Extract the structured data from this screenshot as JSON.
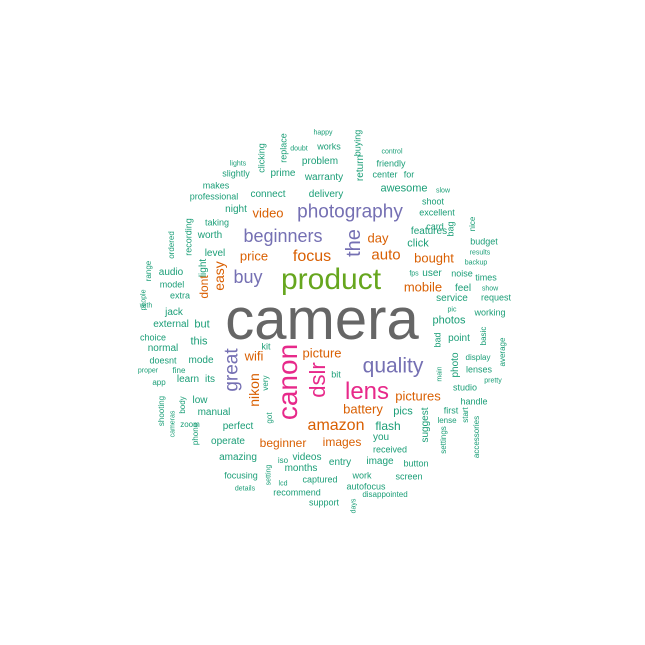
{
  "colors": {
    "tier1": "#666666",
    "tier2": "#66a61e",
    "tier3": "#e7298a",
    "tier4": "#7570b3",
    "tier5": "#d95f02",
    "tier6": "#1b9e77"
  },
  "words": [
    {
      "text": "camera",
      "tier": 1
    },
    {
      "text": "product",
      "tier": 2
    },
    {
      "text": "canon",
      "tier": 3
    },
    {
      "text": "dslr",
      "tier": 3
    },
    {
      "text": "lens",
      "tier": 3
    },
    {
      "text": "quality",
      "tier": 4
    },
    {
      "text": "photography",
      "tier": 4
    },
    {
      "text": "the",
      "tier": 4
    },
    {
      "text": "beginners",
      "tier": 4
    },
    {
      "text": "great",
      "tier": 4
    },
    {
      "text": "buy",
      "tier": 4
    },
    {
      "text": "amazon",
      "tier": 5
    },
    {
      "text": "focus",
      "tier": 5
    },
    {
      "text": "auto",
      "tier": 5
    },
    {
      "text": "easy",
      "tier": 5
    },
    {
      "text": "nikon",
      "tier": 5
    },
    {
      "text": "wifi",
      "tier": 5
    },
    {
      "text": "video",
      "tier": 5
    },
    {
      "text": "price",
      "tier": 5
    },
    {
      "text": "day",
      "tier": 5
    },
    {
      "text": "bought",
      "tier": 5
    },
    {
      "text": "mobile",
      "tier": 5
    },
    {
      "text": "picture",
      "tier": 5
    },
    {
      "text": "pictures",
      "tier": 5
    },
    {
      "text": "battery",
      "tier": 5
    },
    {
      "text": "beginner",
      "tier": 5
    },
    {
      "text": "images",
      "tier": 5
    },
    {
      "text": "dont",
      "tier": 5
    },
    {
      "text": "flash",
      "tier": 6
    },
    {
      "text": "photos",
      "tier": 6
    },
    {
      "text": "features",
      "tier": 6
    },
    {
      "text": "click",
      "tier": 6
    },
    {
      "text": "pics",
      "tier": 6
    },
    {
      "text": "image",
      "tier": 6
    },
    {
      "text": "you",
      "tier": 6
    },
    {
      "text": "suggest",
      "tier": 6
    },
    {
      "text": "videos",
      "tier": 6
    },
    {
      "text": "months",
      "tier": 6
    },
    {
      "text": "entry",
      "tier": 6
    },
    {
      "text": "captured",
      "tier": 6
    },
    {
      "text": "recommend",
      "tier": 6
    },
    {
      "text": "support",
      "tier": 6
    },
    {
      "text": "work",
      "tier": 6
    },
    {
      "text": "screen",
      "tier": 6
    },
    {
      "text": "received",
      "tier": 6
    },
    {
      "text": "button",
      "tier": 6
    },
    {
      "text": "autofocus",
      "tier": 6
    },
    {
      "text": "disappointed",
      "tier": 6
    },
    {
      "text": "days",
      "tier": 6
    },
    {
      "text": "focusing",
      "tier": 6
    },
    {
      "text": "details",
      "tier": 6
    },
    {
      "text": "lcd",
      "tier": 6
    },
    {
      "text": "setting",
      "tier": 6
    },
    {
      "text": "iso",
      "tier": 6
    },
    {
      "text": "amazing",
      "tier": 6
    },
    {
      "text": "operate",
      "tier": 6
    },
    {
      "text": "perfect",
      "tier": 6
    },
    {
      "text": "manual",
      "tier": 6
    },
    {
      "text": "low",
      "tier": 6
    },
    {
      "text": "learn",
      "tier": 6
    },
    {
      "text": "its",
      "tier": 6
    },
    {
      "text": "mode",
      "tier": 6
    },
    {
      "text": "this",
      "tier": 6
    },
    {
      "text": "but",
      "tier": 6
    },
    {
      "text": "light",
      "tier": 6
    },
    {
      "text": "level",
      "tier": 6
    },
    {
      "text": "worth",
      "tier": 6
    },
    {
      "text": "taking",
      "tier": 6
    },
    {
      "text": "night",
      "tier": 6
    },
    {
      "text": "professional",
      "tier": 6
    },
    {
      "text": "makes",
      "tier": 6
    },
    {
      "text": "slightly",
      "tier": 6
    },
    {
      "text": "lights",
      "tier": 6
    },
    {
      "text": "clicking",
      "tier": 6
    },
    {
      "text": "replace",
      "tier": 6
    },
    {
      "text": "doubt",
      "tier": 6
    },
    {
      "text": "happy",
      "tier": 6
    },
    {
      "text": "works",
      "tier": 6
    },
    {
      "text": "buying",
      "tier": 6
    },
    {
      "text": "control",
      "tier": 6
    },
    {
      "text": "problem",
      "tier": 6
    },
    {
      "text": "friendly",
      "tier": 6
    },
    {
      "text": "center",
      "tier": 6
    },
    {
      "text": "for",
      "tier": 6
    },
    {
      "text": "prime",
      "tier": 6
    },
    {
      "text": "warranty",
      "tier": 6
    },
    {
      "text": "return",
      "tier": 6
    },
    {
      "text": "connect",
      "tier": 6
    },
    {
      "text": "delivery",
      "tier": 6
    },
    {
      "text": "awesome",
      "tier": 6
    },
    {
      "text": "slow",
      "tier": 6
    },
    {
      "text": "shoot",
      "tier": 6
    },
    {
      "text": "excellent",
      "tier": 6
    },
    {
      "text": "card",
      "tier": 6
    },
    {
      "text": "bag",
      "tier": 6
    },
    {
      "text": "nice",
      "tier": 6
    },
    {
      "text": "budget",
      "tier": 6
    },
    {
      "text": "results",
      "tier": 6
    },
    {
      "text": "backup",
      "tier": 6
    },
    {
      "text": "times",
      "tier": 6
    },
    {
      "text": "fps",
      "tier": 6
    },
    {
      "text": "user",
      "tier": 6
    },
    {
      "text": "noise",
      "tier": 6
    },
    {
      "text": "show",
      "tier": 6
    },
    {
      "text": "request",
      "tier": 6
    },
    {
      "text": "feel",
      "tier": 6
    },
    {
      "text": "service",
      "tier": 6
    },
    {
      "text": "pic",
      "tier": 6
    },
    {
      "text": "working",
      "tier": 6
    },
    {
      "text": "bad",
      "tier": 6
    },
    {
      "text": "point",
      "tier": 6
    },
    {
      "text": "basic",
      "tier": 6
    },
    {
      "text": "average",
      "tier": 6
    },
    {
      "text": "photo",
      "tier": 6
    },
    {
      "text": "display",
      "tier": 6
    },
    {
      "text": "main",
      "tier": 6
    },
    {
      "text": "studio",
      "tier": 6
    },
    {
      "text": "lenses",
      "tier": 6
    },
    {
      "text": "pretty",
      "tier": 6
    },
    {
      "text": "handle",
      "tier": 6
    },
    {
      "text": "first",
      "tier": 6
    },
    {
      "text": "lense",
      "tier": 6
    },
    {
      "text": "start",
      "tier": 6
    },
    {
      "text": "settings",
      "tier": 6
    },
    {
      "text": "accessories",
      "tier": 6
    },
    {
      "text": "recording",
      "tier": 6
    },
    {
      "text": "ordered",
      "tier": 6
    },
    {
      "text": "audio",
      "tier": 6
    },
    {
      "text": "range",
      "tier": 6
    },
    {
      "text": "model",
      "tier": 6
    },
    {
      "text": "extra",
      "tier": 6
    },
    {
      "text": "people",
      "tier": 6
    },
    {
      "text": "with",
      "tier": 6
    },
    {
      "text": "jack",
      "tier": 6
    },
    {
      "text": "external",
      "tier": 6
    },
    {
      "text": "choice",
      "tier": 6
    },
    {
      "text": "normal",
      "tier": 6
    },
    {
      "text": "doesnt",
      "tier": 6
    },
    {
      "text": "proper",
      "tier": 6
    },
    {
      "text": "fine",
      "tier": 6
    },
    {
      "text": "app",
      "tier": 6
    },
    {
      "text": "body",
      "tier": 6
    },
    {
      "text": "shooting",
      "tier": 6
    },
    {
      "text": "zoom",
      "tier": 6
    },
    {
      "text": "cameras",
      "tier": 6
    },
    {
      "text": "phone",
      "tier": 6
    },
    {
      "text": "kit",
      "tier": 6
    },
    {
      "text": "bit",
      "tier": 6
    },
    {
      "text": "very",
      "tier": 6
    },
    {
      "text": "got",
      "tier": 6
    }
  ]
}
